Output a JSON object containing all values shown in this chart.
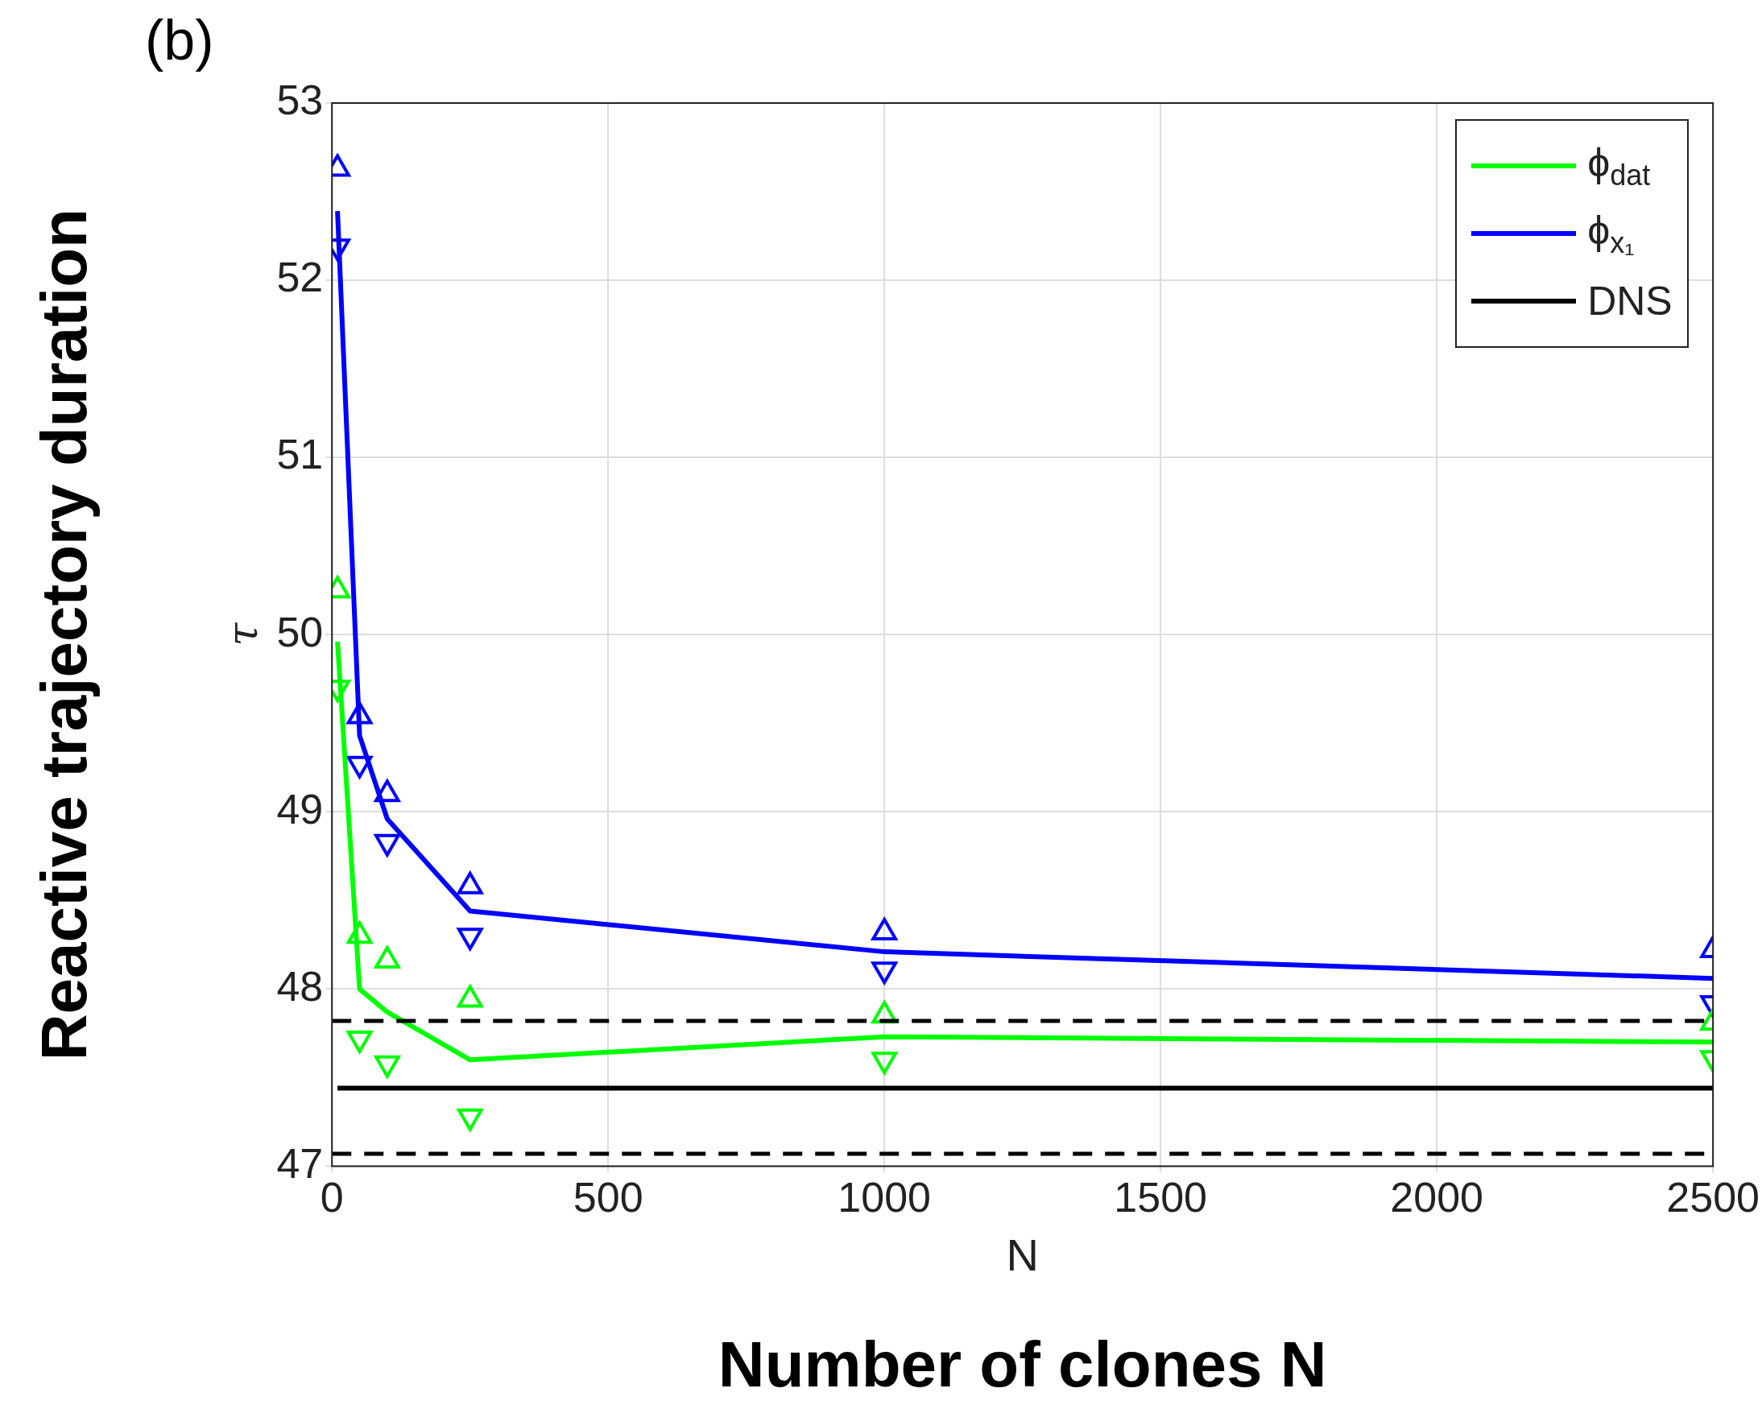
{
  "chart_data": {
    "type": "line",
    "xlabel": "N",
    "ylabel": "τ",
    "annotations": [
      "(b)",
      "Reactive trajectory duration",
      "Number of clones N"
    ],
    "x": [
      10,
      50,
      100,
      250,
      1000,
      2500
    ],
    "xlim": [
      0,
      2500
    ],
    "xticks": [
      0,
      500,
      1000,
      1500,
      2000,
      2500
    ],
    "ylim": [
      47,
      53
    ],
    "yticks": [
      47,
      48,
      49,
      50,
      51,
      52,
      53
    ],
    "grid": true,
    "legend": "top right",
    "marker": "none",
    "line_style": "solid",
    "series": [
      {
        "name": "ϕ$_{dat}$",
        "color": "#00ff00",
        "values": [
          49.96,
          48.0,
          47.87,
          47.6,
          47.73,
          47.7
        ]
      },
      {
        "name": "ϕ$_{x₁}$",
        "color": "#0000ff",
        "values": [
          52.39,
          49.43,
          48.96,
          48.44,
          48.21,
          48.06
        ]
      },
      {
        "name": "DNS",
        "color": "#000000",
        "x": [
          10,
          2500
        ],
        "values": [
          47.44,
          47.44
        ]
      },
      {
        "type": "scatter",
        "marker": "triangle",
        "color": "#00ff00",
        "values": [
          50.25,
          48.3,
          48.16,
          47.94,
          47.85,
          47.81
        ]
      },
      {
        "type": "scatter",
        "marker": "triangle-down",
        "color": "#00ff00",
        "values": [
          49.7,
          47.72,
          47.58,
          47.28,
          47.6,
          47.61
        ]
      },
      {
        "type": "scatter",
        "marker": "triangle",
        "color": "#0000ff",
        "values": [
          52.63,
          49.54,
          49.1,
          48.58,
          48.32,
          48.22
        ]
      },
      {
        "type": "scatter",
        "marker": "triangle-down",
        "color": "#0000ff",
        "values": [
          52.19,
          49.27,
          48.83,
          48.3,
          48.11,
          47.92
        ]
      }
    ],
    "ref_lines": [
      {
        "axis": "y",
        "value": 47.82,
        "color": "#000000",
        "line_style": "dashed"
      },
      {
        "axis": "y",
        "value": 47.07,
        "color": "#000000",
        "line_style": "dashed"
      }
    ]
  }
}
